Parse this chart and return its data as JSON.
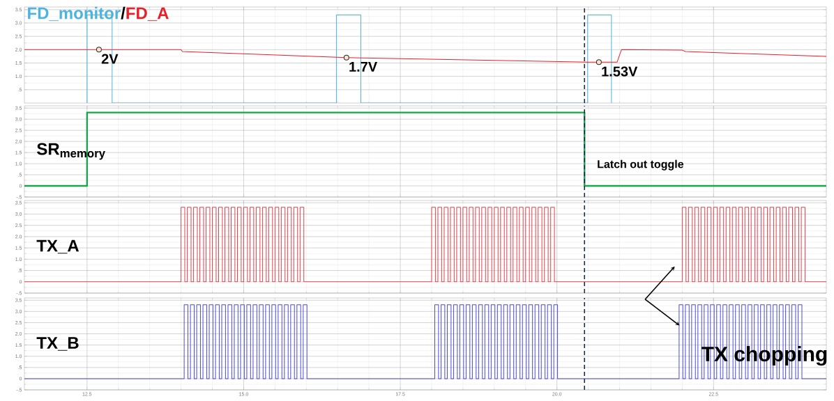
{
  "chart_data": [
    {
      "type": "line",
      "xlim": [
        11.5,
        24.3
      ],
      "ylim": [
        0,
        3.6
      ],
      "xticks": [
        12.5,
        15,
        17.5,
        20,
        22.5
      ],
      "yticks": [
        {
          "value": 0.5,
          "label": ".5"
        },
        {
          "value": 1,
          "label": "1.0"
        },
        1.5,
        {
          "value": 2,
          "label": "2.0"
        },
        2.5,
        {
          "value": 3,
          "label": "3.0"
        },
        3.5
      ],
      "tick_labels": "y",
      "grid": true,
      "series": [
        {
          "name": "FD_monitor",
          "color": "#4fb3e0",
          "x": [
            12.5,
            12.5,
            12.9,
            12.9,
            16.48,
            16.48,
            16.87,
            16.87,
            20.49,
            20.49,
            20.87,
            20.87
          ],
          "values": [
            0,
            3.3,
            3.3,
            0,
            0,
            3.3,
            3.3,
            0,
            0,
            3.3,
            3.3,
            0
          ]
        },
        {
          "name": "FD_A",
          "color": "#e8202a",
          "x": [
            11.5,
            14.0,
            14.02,
            16.64,
            20.5,
            20.96,
            21.03,
            22.0,
            22.05,
            24.3
          ],
          "values": [
            2.0,
            2.0,
            1.93,
            1.7,
            1.53,
            1.53,
            2.0,
            1.98,
            1.93,
            1.75
          ]
        }
      ],
      "ref_lines": [
        {
          "axis": "x",
          "value": 20.44,
          "color": "#1f2f4f",
          "line_style": "dashed"
        }
      ],
      "annotations": [
        "/",
        {
          "text": "2V",
          "x": 12.69,
          "y": 2.0
        },
        {
          "text": "1.7V",
          "x": 16.64,
          "y": 1.7
        },
        {
          "text": "1.53V",
          "x": 20.67,
          "y": 1.53
        }
      ]
    },
    {
      "type": "line",
      "xlim": [
        11.5,
        24.3
      ],
      "ylim": [
        -0.5,
        3.6
      ],
      "xticks": [
        12.5,
        15,
        17.5,
        20,
        22.5
      ],
      "yticks": [
        {
          "value": -0.5,
          "label": "-.5"
        },
        0,
        {
          "value": 0.5,
          "label": ".5"
        },
        {
          "value": 1,
          "label": "1.0"
        },
        1.5,
        {
          "value": 2,
          "label": "2.0"
        },
        2.5,
        {
          "value": 3,
          "label": "3.0"
        },
        3.5
      ],
      "tick_labels": "y",
      "grid": true,
      "series": [
        {
          "name": "SR$_{memory}$",
          "color": "#1aa64a",
          "x": [
            11.5,
            12.5,
            12.5,
            20.44,
            20.44,
            24.3
          ],
          "values": [
            0,
            0,
            3.3,
            3.3,
            0,
            0
          ]
        }
      ],
      "ref_lines": [
        {
          "axis": "x",
          "value": 20.44,
          "color": "#1f2f4f",
          "line_style": "dashed"
        }
      ],
      "annotations": [
        "Latch out toggle"
      ]
    },
    {
      "type": "step",
      "xlim": [
        11.5,
        24.3
      ],
      "ylim": [
        -0.5,
        3.6
      ],
      "xticks": [
        12.5,
        15,
        17.5,
        20,
        22.5
      ],
      "yticks": [
        {
          "value": -0.5,
          "label": "-.5"
        },
        0,
        {
          "value": 0.5,
          "label": ".5"
        },
        {
          "value": 1,
          "label": "1.0"
        },
        1.5,
        {
          "value": 2,
          "label": "2.0"
        },
        2.5,
        {
          "value": 3,
          "label": "3.0"
        },
        3.5
      ],
      "tick_labels": "y",
      "grid": true,
      "series": [
        {
          "name": "TX_A",
          "color": "#e8404a",
          "x": [
            11.5,
            14.0,
            14.06,
            14.1,
            14.16,
            14.2,
            14.26,
            14.3,
            14.36,
            14.4,
            14.46,
            14.5,
            14.56,
            14.6,
            14.66,
            14.7,
            14.76,
            14.8,
            14.86,
            14.9,
            14.96,
            15.0,
            15.06,
            15.1,
            15.16,
            15.2,
            15.26,
            15.3,
            15.36,
            15.4,
            15.46,
            15.5,
            15.56,
            15.6,
            15.66,
            15.7,
            15.76,
            15.8,
            15.86,
            15.9,
            15.96,
            18.0,
            18.06,
            18.1,
            18.16,
            18.2,
            18.26,
            18.3,
            18.36,
            18.4,
            18.46,
            18.5,
            18.56,
            18.6,
            18.66,
            18.7,
            18.76,
            18.8,
            18.86,
            18.9,
            18.96,
            19.0,
            19.06,
            19.1,
            19.16,
            19.2,
            19.26,
            19.3,
            19.36,
            19.4,
            19.46,
            19.5,
            19.56,
            19.6,
            19.66,
            19.7,
            19.76,
            19.8,
            19.86,
            19.9,
            19.96,
            22.0,
            22.06,
            22.1,
            22.16,
            22.2,
            22.26,
            22.3,
            22.36,
            22.4,
            22.46,
            22.5,
            22.56,
            22.6,
            22.66,
            22.7,
            22.76,
            22.8,
            22.86,
            22.9,
            22.96,
            23.0,
            23.06,
            23.1,
            23.16,
            23.2,
            23.26,
            23.3,
            23.36,
            23.4,
            23.46,
            23.5,
            23.56,
            23.6,
            23.66,
            23.7,
            23.76,
            23.8,
            23.86,
            23.9,
            23.96,
            24.3
          ],
          "values": [
            0,
            3.3,
            0,
            3.3,
            0,
            3.3,
            0,
            3.3,
            0,
            3.3,
            0,
            3.3,
            0,
            3.3,
            0,
            3.3,
            0,
            3.3,
            0,
            3.3,
            0,
            3.3,
            0,
            3.3,
            0,
            3.3,
            0,
            3.3,
            0,
            3.3,
            0,
            3.3,
            0,
            3.3,
            0,
            3.3,
            0,
            3.3,
            0,
            3.3,
            0,
            3.3,
            0,
            3.3,
            0,
            3.3,
            0,
            3.3,
            0,
            3.3,
            0,
            3.3,
            0,
            3.3,
            0,
            3.3,
            0,
            3.3,
            0,
            3.3,
            0,
            3.3,
            0,
            3.3,
            0,
            3.3,
            0,
            3.3,
            0,
            3.3,
            0,
            3.3,
            0,
            3.3,
            0,
            3.3,
            0,
            3.3,
            0,
            3.3,
            0,
            3.3,
            0,
            3.3,
            0,
            3.3,
            0,
            3.3,
            0,
            3.3,
            0,
            3.3,
            0,
            3.3,
            0,
            3.3,
            0,
            3.3,
            0,
            3.3,
            0,
            3.3,
            0,
            3.3,
            0,
            3.3,
            0,
            3.3,
            0,
            3.3,
            0,
            3.3,
            0,
            3.3,
            0,
            3.3,
            0,
            3.3,
            0,
            3.3,
            0,
            0
          ]
        }
      ],
      "ref_lines": [
        {
          "axis": "x",
          "value": 20.44,
          "color": "#1f2f4f",
          "line_style": "dashed"
        }
      ]
    },
    {
      "type": "step",
      "xlim": [
        11.5,
        24.3
      ],
      "ylim": [
        -0.5,
        3.6
      ],
      "xticks": [
        12.5,
        {
          "value": 15,
          "label": "15.0"
        },
        17.5,
        {
          "value": 20,
          "label": "20.0"
        },
        22.5
      ],
      "yticks": [
        {
          "value": -0.5,
          "label": "-.5"
        },
        0,
        {
          "value": 0.5,
          "label": ".5"
        },
        {
          "value": 1,
          "label": "1.0"
        },
        1.5,
        {
          "value": 2,
          "label": "2.0"
        },
        2.5,
        {
          "value": 3,
          "label": "3.0"
        },
        3.5
      ],
      "grid": true,
      "series": [
        {
          "name": "TX_B",
          "color": "#4a4ae0",
          "x": [
            11.5,
            14.05,
            14.11,
            14.15,
            14.21,
            14.25,
            14.31,
            14.35,
            14.41,
            14.45,
            14.51,
            14.55,
            14.61,
            14.65,
            14.71,
            14.75,
            14.81,
            14.85,
            14.91,
            14.95,
            15.01,
            15.05,
            15.11,
            15.15,
            15.21,
            15.25,
            15.31,
            15.35,
            15.41,
            15.45,
            15.51,
            15.55,
            15.61,
            15.65,
            15.71,
            15.75,
            15.81,
            15.85,
            15.91,
            15.95,
            16.01,
            18.05,
            18.11,
            18.15,
            18.21,
            18.25,
            18.31,
            18.35,
            18.41,
            18.45,
            18.51,
            18.55,
            18.61,
            18.65,
            18.71,
            18.75,
            18.81,
            18.85,
            18.91,
            18.95,
            19.01,
            19.05,
            19.11,
            19.15,
            19.21,
            19.25,
            19.31,
            19.35,
            19.41,
            19.45,
            19.51,
            19.55,
            19.61,
            19.65,
            19.71,
            19.75,
            19.81,
            19.85,
            19.91,
            19.95,
            20.01,
            21.95,
            22.01,
            22.05,
            22.11,
            22.15,
            22.21,
            22.25,
            22.31,
            22.35,
            22.41,
            22.45,
            22.51,
            22.55,
            22.61,
            22.65,
            22.71,
            22.75,
            22.81,
            22.85,
            22.91,
            22.95,
            23.01,
            23.05,
            23.11,
            23.15,
            23.21,
            23.25,
            23.31,
            23.35,
            23.41,
            23.45,
            23.51,
            23.55,
            23.61,
            23.65,
            23.71,
            23.75,
            23.81,
            23.85,
            23.91,
            24.3
          ],
          "values": [
            0,
            3.3,
            0,
            3.3,
            0,
            3.3,
            0,
            3.3,
            0,
            3.3,
            0,
            3.3,
            0,
            3.3,
            0,
            3.3,
            0,
            3.3,
            0,
            3.3,
            0,
            3.3,
            0,
            3.3,
            0,
            3.3,
            0,
            3.3,
            0,
            3.3,
            0,
            3.3,
            0,
            3.3,
            0,
            3.3,
            0,
            3.3,
            0,
            3.3,
            0,
            3.3,
            0,
            3.3,
            0,
            3.3,
            0,
            3.3,
            0,
            3.3,
            0,
            3.3,
            0,
            3.3,
            0,
            3.3,
            0,
            3.3,
            0,
            3.3,
            0,
            3.3,
            0,
            3.3,
            0,
            3.3,
            0,
            3.3,
            0,
            3.3,
            0,
            3.3,
            0,
            3.3,
            0,
            3.3,
            0,
            3.3,
            0,
            3.3,
            0,
            3.3,
            0,
            3.3,
            0,
            3.3,
            0,
            3.3,
            0,
            3.3,
            0,
            3.3,
            0,
            3.3,
            0,
            3.3,
            0,
            3.3,
            0,
            3.3,
            0,
            3.3,
            0,
            3.3,
            0,
            3.3,
            0,
            3.3,
            0,
            3.3,
            0,
            3.3,
            0,
            3.3,
            0,
            3.3,
            0,
            3.3,
            0,
            3.3,
            0,
            0
          ]
        }
      ],
      "ref_lines": [
        {
          "axis": "x",
          "value": 20.44,
          "color": "#1f2f4f",
          "line_style": "dashed"
        }
      ],
      "annotations": [
        "TX chopping"
      ]
    }
  ]
}
